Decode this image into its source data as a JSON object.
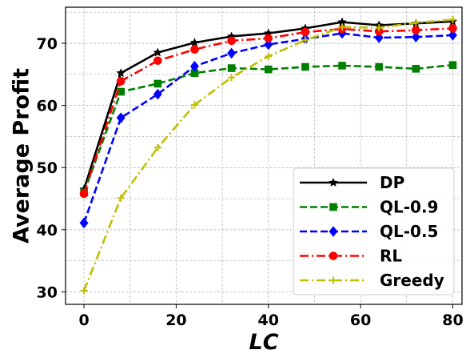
{
  "chart_data": {
    "type": "line",
    "xlabel": "LC",
    "ylabel": "Average Profit",
    "xlim": [
      -4,
      82
    ],
    "ylim": [
      28,
      75.8
    ],
    "xticks": [
      0,
      20,
      40,
      60,
      80
    ],
    "yticks": [
      30,
      40,
      50,
      60,
      70
    ],
    "grid": true,
    "legend_position": "lower-right",
    "x": [
      0,
      8,
      16,
      24,
      32,
      40,
      48,
      56,
      64,
      72,
      80
    ],
    "series": [
      {
        "name": "DP",
        "color": "#000000",
        "linestyle": "solid",
        "marker": "star",
        "values": [
          46.5,
          65.2,
          68.5,
          70.1,
          71.1,
          71.6,
          72.4,
          73.4,
          72.9,
          73.2,
          73.5
        ]
      },
      {
        "name": "QL-0.9",
        "color": "#008000",
        "linestyle": "dashed",
        "marker": "square",
        "values": [
          46.0,
          62.2,
          63.5,
          65.2,
          66.0,
          65.8,
          66.2,
          66.4,
          66.2,
          65.9,
          66.5
        ]
      },
      {
        "name": "QL-0.5",
        "color": "#0000ff",
        "linestyle": "dashed",
        "marker": "diamond",
        "values": [
          41.1,
          58.0,
          61.8,
          66.3,
          68.4,
          69.8,
          70.7,
          71.6,
          70.9,
          71.0,
          71.3
        ]
      },
      {
        "name": "RL",
        "color": "#ff0000",
        "linestyle": "dashdot",
        "marker": "circle",
        "values": [
          45.8,
          63.9,
          67.2,
          69.0,
          70.4,
          70.8,
          71.8,
          72.3,
          71.9,
          72.1,
          72.4
        ]
      },
      {
        "name": "Greedy",
        "color": "#bfbf00",
        "linestyle": "dashdot",
        "marker": "plus",
        "values": [
          30.2,
          45.1,
          53.2,
          60.1,
          64.5,
          67.9,
          70.5,
          72.6,
          72.5,
          73.3,
          73.8
        ]
      }
    ]
  }
}
